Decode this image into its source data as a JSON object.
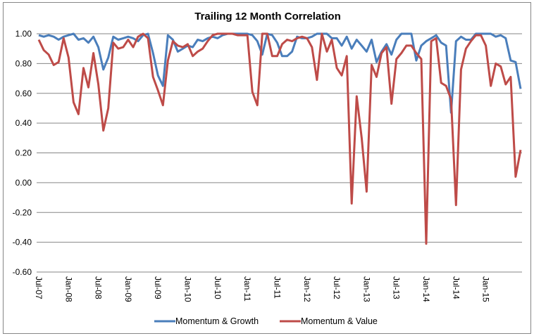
{
  "chart_data": {
    "type": "line",
    "title": "Trailing 12 Month Correlation",
    "xlabel": "",
    "ylabel": "",
    "ylim": [
      -0.6,
      1.0
    ],
    "yticks": [
      "1.00",
      "0.80",
      "0.60",
      "0.40",
      "0.20",
      "0.00",
      "-0.20",
      "-0.40",
      "-0.60"
    ],
    "ytick_values": [
      1.0,
      0.8,
      0.6,
      0.4,
      0.2,
      0.0,
      -0.2,
      -0.4,
      -0.6
    ],
    "xticks": [
      "Jul-07",
      "Jan-08",
      "Jul-08",
      "Jan-09",
      "Jul-09",
      "Jan-10",
      "Jul-10",
      "Jan-11",
      "Jul-11",
      "Jan-12",
      "Jul-12",
      "Jan-13",
      "Jul-13",
      "Jan-14",
      "Jul-14",
      "Jan-15"
    ],
    "xtick_every_months": 6,
    "x_start": "Jul-07",
    "x_end": "Jul-15",
    "grid": true,
    "legend_position": "bottom",
    "series": [
      {
        "name": "Momentum & Growth",
        "color": "#4A7EBB",
        "values": [
          0.99,
          0.98,
          0.99,
          0.98,
          0.96,
          0.98,
          0.99,
          1.0,
          0.96,
          0.97,
          0.94,
          0.98,
          0.91,
          0.76,
          0.84,
          0.98,
          0.96,
          0.97,
          0.98,
          0.97,
          0.95,
          0.99,
          1.0,
          0.87,
          0.72,
          0.65,
          0.99,
          0.96,
          0.88,
          0.9,
          0.92,
          0.91,
          0.96,
          0.95,
          0.97,
          0.98,
          0.97,
          0.99,
          1.0,
          1.0,
          1.0,
          1.0,
          1.0,
          0.99,
          0.95,
          0.86,
          1.0,
          0.99,
          0.94,
          0.85,
          0.85,
          0.88,
          0.98,
          0.97,
          0.97,
          0.98,
          1.0,
          1.0,
          1.0,
          0.97,
          0.97,
          0.92,
          0.98,
          0.9,
          0.96,
          0.92,
          0.88,
          0.96,
          0.81,
          0.88,
          0.93,
          0.86,
          0.96,
          1.0,
          1.0,
          1.0,
          0.82,
          0.92,
          0.95,
          0.97,
          0.99,
          0.94,
          0.92,
          0.47,
          0.95,
          0.98,
          0.96,
          0.96,
          1.0,
          1.0,
          1.0,
          1.0,
          0.98,
          0.99,
          0.97,
          0.82,
          0.81,
          0.63
        ],
        "visible_max_index": 96
      },
      {
        "name": "Momentum & Value",
        "color": "#BE4B48",
        "values": [
          0.96,
          0.89,
          0.86,
          0.79,
          0.81,
          0.97,
          0.84,
          0.54,
          0.46,
          0.77,
          0.64,
          0.87,
          0.66,
          0.35,
          0.5,
          0.94,
          0.9,
          0.91,
          0.96,
          0.91,
          0.98,
          1.0,
          0.97,
          0.71,
          0.62,
          0.52,
          0.82,
          0.95,
          0.92,
          0.91,
          0.93,
          0.85,
          0.88,
          0.9,
          0.95,
          0.99,
          1.0,
          1.0,
          1.0,
          1.0,
          0.99,
          0.99,
          0.99,
          0.61,
          0.52,
          1.0,
          1.0,
          0.85,
          0.85,
          0.93,
          0.96,
          0.95,
          0.97,
          0.98,
          0.97,
          0.91,
          0.69,
          1.0,
          0.88,
          0.96,
          0.77,
          0.72,
          0.85,
          -0.14,
          0.58,
          0.3,
          -0.06,
          0.79,
          0.71,
          0.87,
          0.91,
          0.53,
          0.83,
          0.87,
          0.92,
          0.92,
          0.87,
          0.83,
          -0.41,
          0.95,
          0.97,
          0.67,
          0.65,
          0.56,
          -0.15,
          0.76,
          0.9,
          0.95,
          0.99,
          0.99,
          0.92,
          0.65,
          0.8,
          0.78,
          0.66,
          0.71,
          0.04,
          0.22
        ]
      }
    ]
  }
}
